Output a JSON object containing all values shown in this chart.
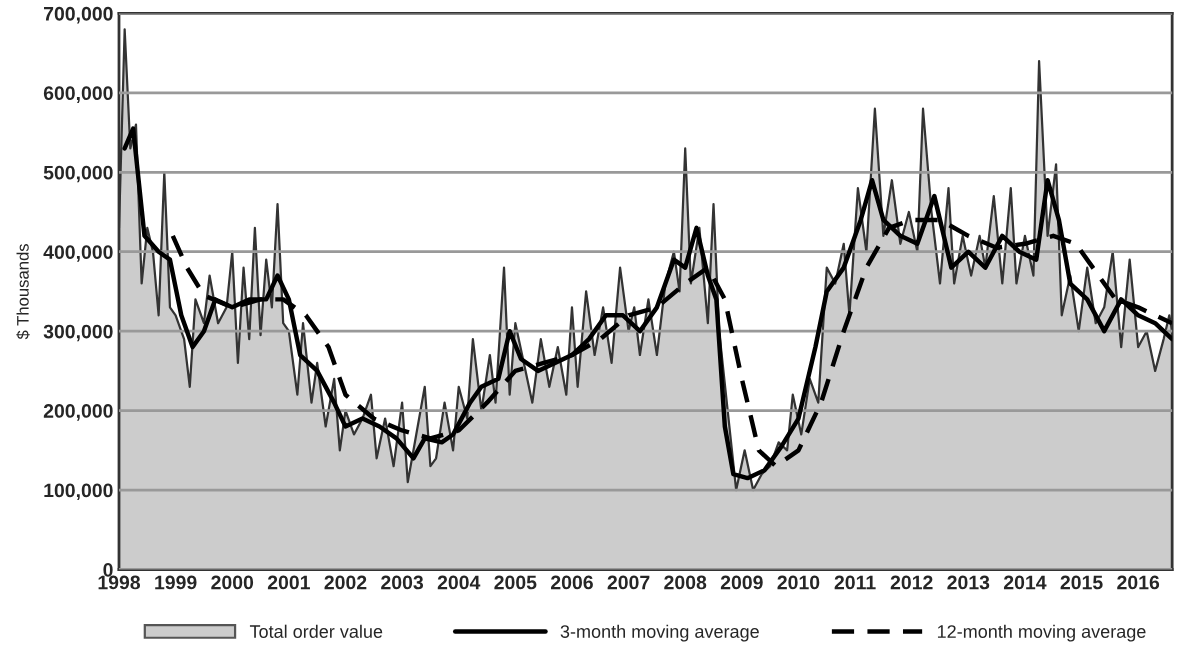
{
  "chart_data": {
    "type": "line",
    "ylabel": "$ Thousands",
    "xlim": [
      1998,
      2016.6
    ],
    "xticks": [
      1998,
      1999,
      2000,
      2001,
      2002,
      2003,
      2004,
      2005,
      2006,
      2007,
      2008,
      2009,
      2010,
      2011,
      2012,
      2013,
      2014,
      2015,
      2016
    ],
    "ylim": [
      0,
      700000
    ],
    "yticks": [
      0,
      {
        "value": 100000,
        "label": "100,000"
      },
      {
        "value": 200000,
        "label": "200,000"
      },
      {
        "value": 300000,
        "label": "300,000"
      },
      {
        "value": 400000,
        "label": "400,000"
      },
      {
        "value": 500000,
        "label": "500,000"
      },
      {
        "value": 600000,
        "label": "600,000"
      },
      {
        "value": 700000,
        "label": "700,000"
      }
    ],
    "grid": "y",
    "legend": "bottom",
    "marker": "none",
    "series": [
      {
        "name": "Total order value",
        "type": "area",
        "color": "#cccccc",
        "line_style": "solid",
        "x": [
          1998.0,
          1998.1,
          1998.2,
          1998.3,
          1998.4,
          1998.5,
          1998.6,
          1998.7,
          1998.8,
          1998.9,
          1999.0,
          1999.15,
          1999.25,
          1999.35,
          1999.5,
          1999.6,
          1999.75,
          1999.9,
          2000.0,
          2000.1,
          2000.2,
          2000.3,
          2000.4,
          2000.5,
          2000.6,
          2000.7,
          2000.8,
          2000.9,
          2001.0,
          2001.15,
          2001.25,
          2001.4,
          2001.5,
          2001.65,
          2001.8,
          2001.9,
          2002.0,
          2002.15,
          2002.3,
          2002.45,
          2002.55,
          2002.7,
          2002.85,
          2003.0,
          2003.1,
          2003.25,
          2003.4,
          2003.5,
          2003.6,
          2003.75,
          2003.9,
          2004.0,
          2004.15,
          2004.25,
          2004.4,
          2004.55,
          2004.65,
          2004.8,
          2004.9,
          2005.0,
          2005.15,
          2005.3,
          2005.45,
          2005.6,
          2005.75,
          2005.9,
          2006.0,
          2006.1,
          2006.25,
          2006.4,
          2006.55,
          2006.7,
          2006.85,
          2007.0,
          2007.1,
          2007.2,
          2007.35,
          2007.5,
          2007.65,
          2007.8,
          2007.9,
          2008.0,
          2008.1,
          2008.25,
          2008.4,
          2008.5,
          2008.6,
          2008.75,
          2008.9,
          2009.05,
          2009.2,
          2009.35,
          2009.5,
          2009.65,
          2009.8,
          2009.9,
          2010.05,
          2010.2,
          2010.35,
          2010.5,
          2010.65,
          2010.8,
          2010.9,
          2011.05,
          2011.2,
          2011.35,
          2011.5,
          2011.65,
          2011.8,
          2011.95,
          2012.1,
          2012.2,
          2012.35,
          2012.5,
          2012.65,
          2012.75,
          2012.9,
          2013.05,
          2013.2,
          2013.3,
          2013.45,
          2013.6,
          2013.75,
          2013.85,
          2014.0,
          2014.15,
          2014.25,
          2014.4,
          2014.55,
          2014.65,
          2014.8,
          2014.95,
          2015.1,
          2015.25,
          2015.4,
          2015.55,
          2015.7,
          2015.85,
          2016.0,
          2016.15,
          2016.3,
          2016.45,
          2016.55,
          2016.6
        ],
        "values": [
          430000,
          680000,
          530000,
          560000,
          360000,
          430000,
          400000,
          320000,
          500000,
          330000,
          320000,
          290000,
          230000,
          340000,
          310000,
          370000,
          310000,
          330000,
          400000,
          260000,
          380000,
          290000,
          430000,
          295000,
          390000,
          330000,
          460000,
          310000,
          300000,
          220000,
          310000,
          210000,
          260000,
          180000,
          240000,
          150000,
          200000,
          170000,
          190000,
          220000,
          140000,
          190000,
          130000,
          210000,
          110000,
          170000,
          230000,
          130000,
          140000,
          210000,
          150000,
          230000,
          190000,
          290000,
          200000,
          270000,
          210000,
          380000,
          220000,
          310000,
          260000,
          210000,
          290000,
          230000,
          280000,
          220000,
          330000,
          230000,
          350000,
          270000,
          330000,
          260000,
          380000,
          300000,
          330000,
          270000,
          340000,
          270000,
          360000,
          400000,
          350000,
          530000,
          360000,
          430000,
          310000,
          460000,
          300000,
          200000,
          100000,
          150000,
          100000,
          120000,
          130000,
          160000,
          150000,
          220000,
          170000,
          240000,
          210000,
          380000,
          360000,
          410000,
          320000,
          480000,
          400000,
          580000,
          420000,
          490000,
          410000,
          450000,
          400000,
          580000,
          450000,
          360000,
          480000,
          360000,
          420000,
          370000,
          420000,
          380000,
          470000,
          360000,
          480000,
          360000,
          420000,
          370000,
          640000,
          420000,
          510000,
          320000,
          370000,
          300000,
          380000,
          310000,
          330000,
          400000,
          280000,
          390000,
          280000,
          300000,
          250000,
          290000,
          320000,
          300000
        ]
      },
      {
        "name": "3-month moving average",
        "color": "#000000",
        "line_style": "solid",
        "x": [
          1998.1,
          1998.25,
          1998.45,
          1998.7,
          1998.9,
          1999.1,
          1999.3,
          1999.5,
          1999.7,
          2000.0,
          2000.3,
          2000.6,
          2000.8,
          2001.0,
          2001.2,
          2001.5,
          2001.8,
          2002.0,
          2002.3,
          2002.6,
          2002.9,
          2003.2,
          2003.4,
          2003.7,
          2003.9,
          2004.2,
          2004.4,
          2004.7,
          2004.9,
          2005.1,
          2005.4,
          2005.7,
          2006.0,
          2006.3,
          2006.6,
          2006.9,
          2007.2,
          2007.5,
          2007.8,
          2008.0,
          2008.2,
          2008.4,
          2008.55,
          2008.7,
          2008.85,
          2009.1,
          2009.4,
          2009.7,
          2010.0,
          2010.3,
          2010.5,
          2010.8,
          2011.1,
          2011.3,
          2011.5,
          2011.8,
          2012.1,
          2012.4,
          2012.7,
          2013.0,
          2013.3,
          2013.6,
          2013.9,
          2014.2,
          2014.4,
          2014.6,
          2014.8,
          2015.1,
          2015.4,
          2015.7,
          2016.0,
          2016.3,
          2016.6
        ],
        "values": [
          530000,
          555000,
          420000,
          400000,
          390000,
          320000,
          280000,
          300000,
          340000,
          330000,
          340000,
          340000,
          370000,
          340000,
          270000,
          250000,
          210000,
          180000,
          190000,
          180000,
          165000,
          140000,
          165000,
          160000,
          170000,
          210000,
          230000,
          240000,
          300000,
          265000,
          250000,
          260000,
          270000,
          290000,
          320000,
          320000,
          300000,
          330000,
          390000,
          380000,
          430000,
          370000,
          340000,
          180000,
          120000,
          115000,
          125000,
          155000,
          190000,
          280000,
          350000,
          380000,
          440000,
          490000,
          440000,
          420000,
          410000,
          470000,
          380000,
          400000,
          380000,
          420000,
          400000,
          390000,
          490000,
          440000,
          360000,
          340000,
          300000,
          340000,
          320000,
          310000,
          290000
        ]
      },
      {
        "name": "12-month moving average",
        "color": "#000000",
        "line_style": "dashed",
        "x": [
          1998.95,
          1999.2,
          1999.5,
          2000.0,
          2000.5,
          2000.9,
          2001.3,
          2001.7,
          2002.0,
          2002.5,
          2003.0,
          2003.5,
          2004.0,
          2004.5,
          2005.0,
          2005.5,
          2006.0,
          2006.5,
          2007.0,
          2007.5,
          2008.0,
          2008.4,
          2008.7,
          2009.0,
          2009.3,
          2009.6,
          2010.0,
          2010.4,
          2010.8,
          2011.2,
          2011.6,
          2012.0,
          2012.5,
          2013.0,
          2013.5,
          2014.0,
          2014.5,
          2014.9,
          2015.2,
          2015.6,
          2016.0,
          2016.6
        ],
        "values": [
          420000,
          380000,
          345000,
          330000,
          340000,
          340000,
          320000,
          280000,
          220000,
          190000,
          175000,
          165000,
          175000,
          210000,
          250000,
          260000,
          270000,
          290000,
          320000,
          330000,
          360000,
          380000,
          340000,
          240000,
          150000,
          130000,
          150000,
          210000,
          300000,
          380000,
          430000,
          440000,
          440000,
          420000,
          405000,
          410000,
          420000,
          410000,
          380000,
          340000,
          330000,
          310000
        ]
      }
    ]
  }
}
